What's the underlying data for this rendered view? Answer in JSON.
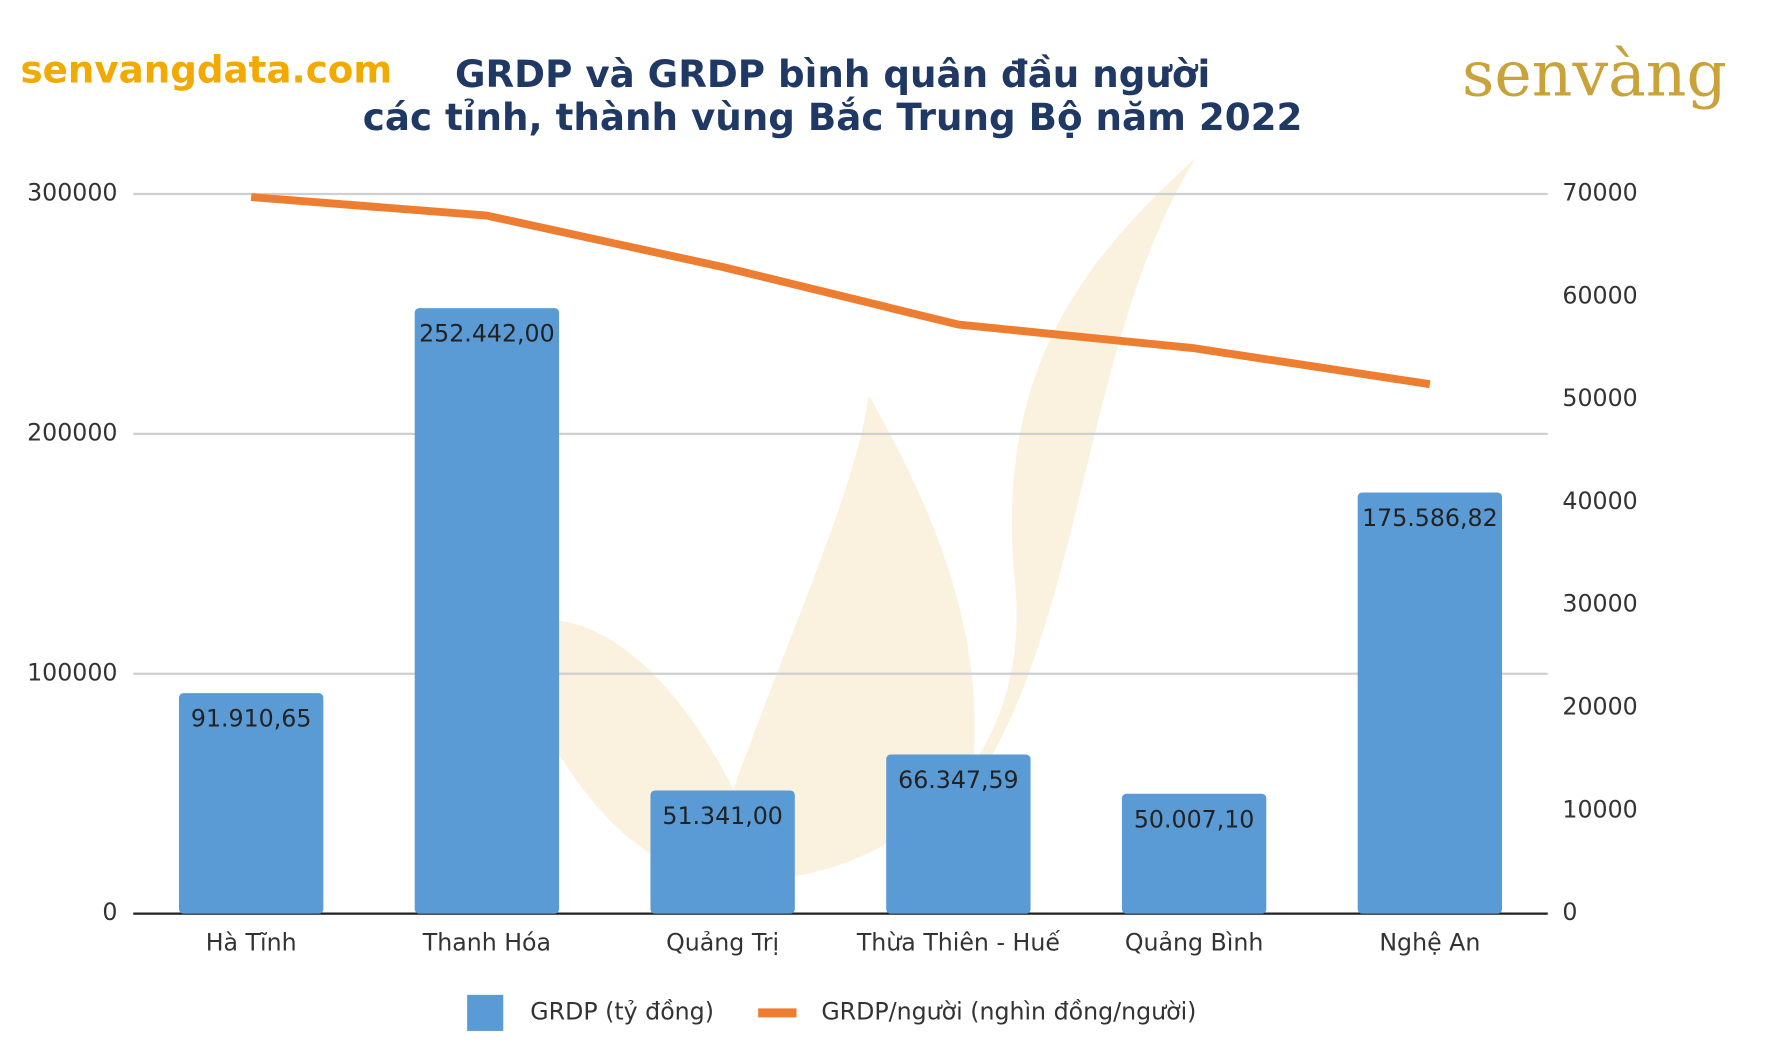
{
  "source": "senvangdata.com",
  "logo": "senvàng",
  "chart_data": {
    "type": "bar_line",
    "title_lines": [
      "GRDP và GRDP bình quân đầu người",
      "các tỉnh, thành vùng Bắc Trung Bộ năm 2022"
    ],
    "categories": [
      "Hà Tĩnh",
      "Thanh Hóa",
      "Quảng Trị",
      "Thừa Thiên - Huế",
      "Quảng Bình",
      "Nghệ An"
    ],
    "series": [
      {
        "name": "GRDP (tỷ đồng)",
        "color": "#5b9bd5",
        "values": [
          91910.65,
          252442,
          51341,
          66347.59,
          50007.1,
          175586.82
        ],
        "value_labels": [
          "91.910,65",
          "252.442,00",
          "51.341,00",
          "66.347,59",
          "50.007,10",
          "175.586,82"
        ]
      },
      {
        "name": "GRDP/người (nghìn đồng/người)",
        "color": "#ed7d31",
        "axis": "y2",
        "values": [
          69700,
          67900,
          62900,
          57300,
          55000,
          51500
        ]
      }
    ],
    "ylim": [
      0,
      300000
    ],
    "yticks": [
      0,
      100000,
      200000,
      300000
    ],
    "y2lim": [
      0,
      70000
    ],
    "y2ticks": [
      0,
      10000,
      20000,
      30000,
      40000,
      50000,
      60000,
      70000
    ],
    "grid": true
  }
}
